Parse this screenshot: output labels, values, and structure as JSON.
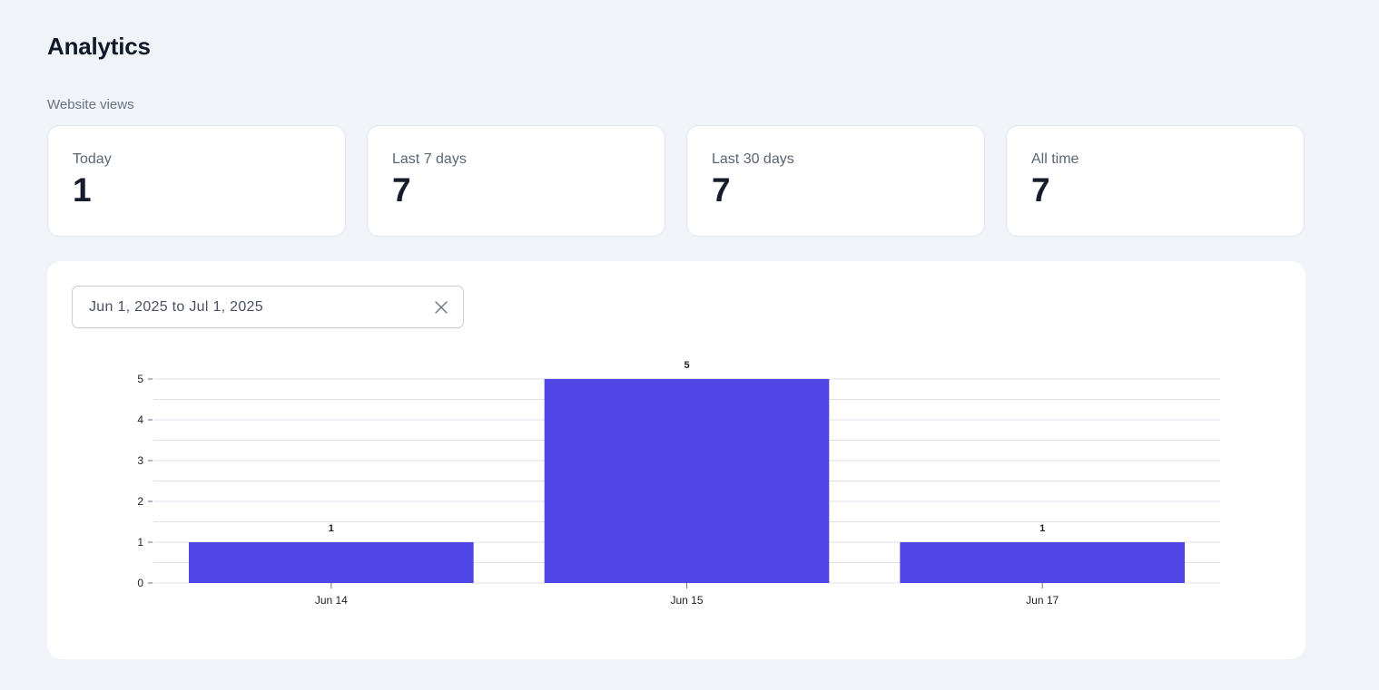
{
  "page": {
    "title": "Analytics"
  },
  "views": {
    "section_label": "Website views",
    "cards": [
      {
        "label": "Today",
        "value": "1"
      },
      {
        "label": "Last 7 days",
        "value": "7"
      },
      {
        "label": "Last 30 days",
        "value": "7"
      },
      {
        "label": "All time",
        "value": "7"
      }
    ]
  },
  "filter": {
    "date_range": "Jun 1, 2025 to Jul 1, 2025",
    "clear_icon": "close-icon"
  },
  "colors": {
    "bar": "#5046e5",
    "page_bg": "#f0f3f8",
    "card_bg": "#ffffff"
  },
  "chart_data": {
    "type": "bar",
    "categories": [
      "Jun 14",
      "Jun 15",
      "Jun 17"
    ],
    "values": [
      1,
      5,
      1
    ],
    "data_labels": [
      "1",
      "5",
      "1"
    ],
    "yticks": [
      "0",
      "1",
      "2",
      "3",
      "4",
      "5"
    ],
    "ylim": [
      0,
      5
    ],
    "grid": true,
    "title": "",
    "xlabel": "",
    "ylabel": ""
  }
}
